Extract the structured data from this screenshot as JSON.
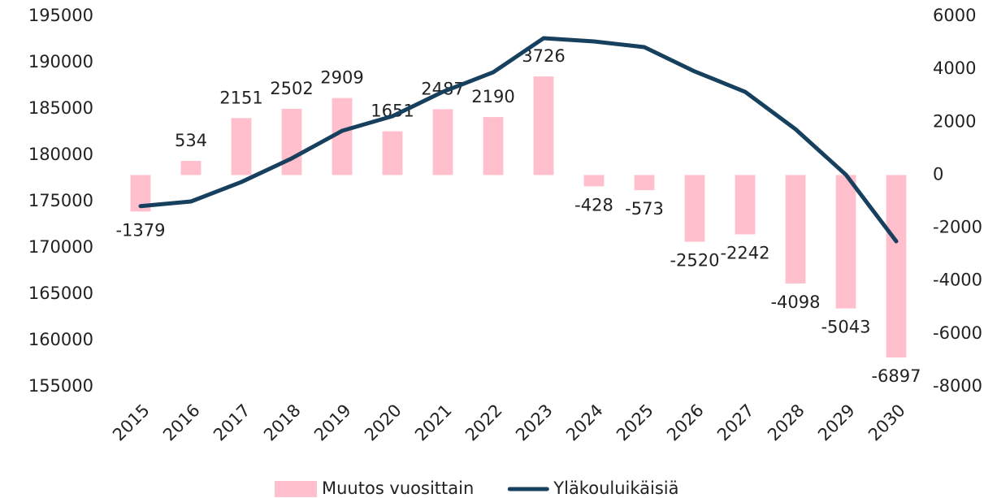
{
  "chart_data": {
    "type": "bar",
    "categories": [
      "2015",
      "2016",
      "2017",
      "2018",
      "2019",
      "2020",
      "2021",
      "2022",
      "2023",
      "2024",
      "2025",
      "2026",
      "2027",
      "2028",
      "2029",
      "2030"
    ],
    "series": [
      {
        "name": "Muutos vuosittain",
        "type": "bar",
        "axis": "y2",
        "color": "#ffbfcc",
        "values": [
          -1379,
          534,
          2151,
          2502,
          2909,
          1651,
          2487,
          2190,
          3726,
          -428,
          -573,
          -2520,
          -2242,
          -4098,
          -5043,
          -6897
        ]
      },
      {
        "name": "Yläkouluikäisiä",
        "type": "line",
        "axis": "y",
        "color": "#17405f",
        "values": [
          174500,
          175000,
          177100,
          179650,
          182630,
          184210,
          186840,
          188950,
          192630,
          192280,
          191670,
          189040,
          186840,
          182810,
          177890,
          170700
        ]
      }
    ],
    "ylim": [
      155000,
      195000
    ],
    "yticks": [
      155000,
      160000,
      165000,
      170000,
      175000,
      180000,
      185000,
      190000,
      195000
    ],
    "y2lim": [
      -8000,
      6000
    ],
    "y2ticks": [
      -8000,
      -6000,
      -4000,
      -2000,
      0,
      2000,
      4000,
      6000
    ],
    "grid": false,
    "legend": "bottom"
  }
}
